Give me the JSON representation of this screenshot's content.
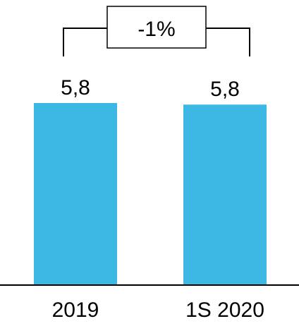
{
  "chart_data": {
    "type": "bar",
    "categories": [
      "2019",
      "1S 2020"
    ],
    "values": [
      5.8,
      5.75
    ],
    "data_labels": [
      "5,8",
      "5,8"
    ],
    "annotation": "-1%",
    "ylim": [
      0,
      5.8
    ],
    "grid": false,
    "legend": "none",
    "colors": {
      "bar": "#3db8e5",
      "axis": "#000000",
      "text": "#000000"
    }
  }
}
